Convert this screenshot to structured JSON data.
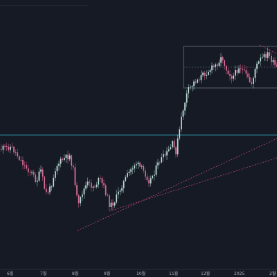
{
  "window": {
    "title": ""
  },
  "colors": {
    "background": "#161a25",
    "up_candle": "#c7e5df",
    "down_candle": "#e0719a",
    "wick_up": "#9fc7c0",
    "wick_down": "#c25680",
    "horizontal_line": "#2f8fa0",
    "range_box": "#6b7380",
    "trendline": "#b84a75",
    "axis_text": "#b2b5be"
  },
  "chart": {
    "timeframe_axis": {
      "labels": [
        "6월",
        "7월",
        "8월",
        "9월",
        "10월",
        "11월",
        "12월",
        "2025",
        "2월"
      ]
    }
  },
  "drawings": [
    {
      "type": "horizontal-line",
      "name": "support-resistance-line"
    },
    {
      "type": "rectangle",
      "name": "consolidation-range-box"
    },
    {
      "type": "trendline",
      "name": "ascending-trendline-1"
    },
    {
      "type": "trendline",
      "name": "ascending-trendline-2"
    }
  ]
}
